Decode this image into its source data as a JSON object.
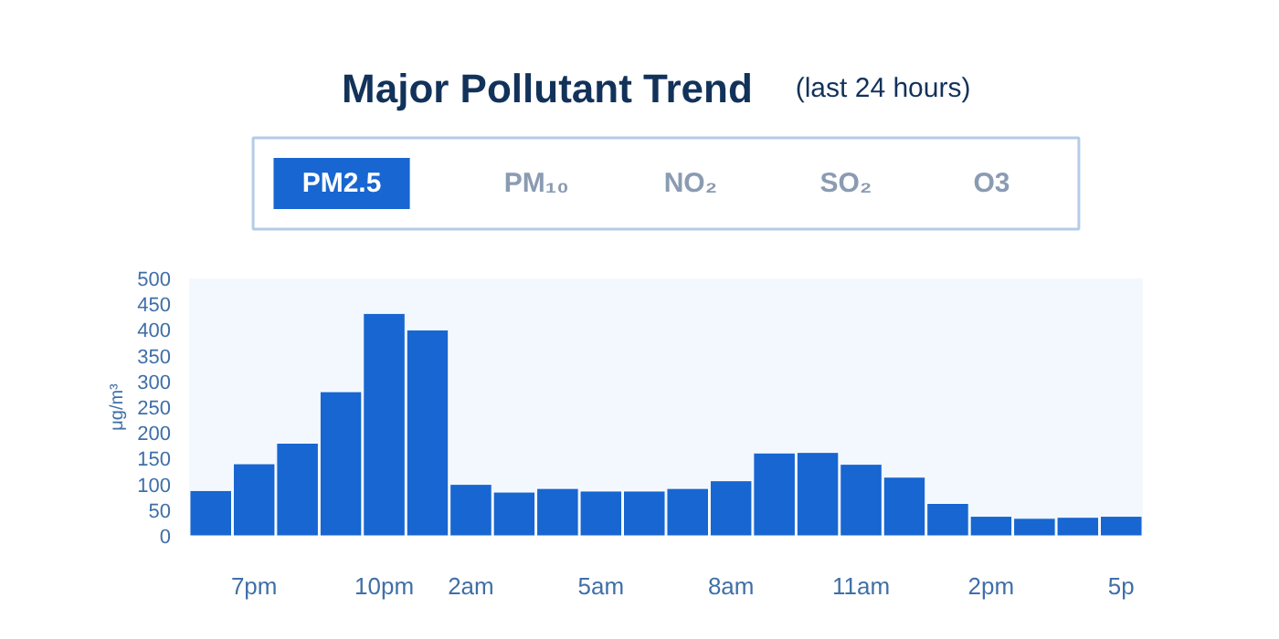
{
  "chart_data": {
    "type": "bar",
    "title": "Major Pollutant Trend",
    "subtitle": "(last 24 hours)",
    "ylabel": "μg/m³",
    "annotations": [
      "PM2.5",
      "PM₁₀",
      "NO₂",
      "SO₂",
      "O3"
    ],
    "categories": [
      null,
      "7pm",
      null,
      null,
      "10pm",
      null,
      "2am",
      null,
      null,
      "5am",
      null,
      null,
      "8am",
      null,
      null,
      "11am",
      null,
      null,
      "2pm",
      null,
      null,
      "5p"
    ],
    "values": [
      88,
      140,
      180,
      280,
      432,
      400,
      100,
      85,
      92,
      87,
      87,
      92,
      107,
      161,
      162,
      139,
      114,
      63,
      38,
      34,
      36,
      38
    ],
    "color": "#1766d1",
    "ylim": [
      0,
      500
    ],
    "yticks": [
      0,
      50,
      100,
      150,
      200,
      250,
      300,
      350,
      400,
      450,
      500
    ]
  }
}
